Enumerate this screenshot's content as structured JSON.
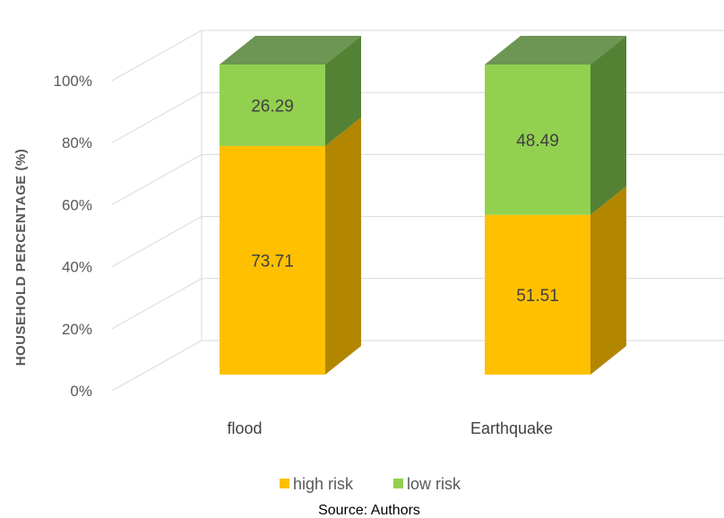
{
  "chart_data": {
    "type": "bar",
    "stacked": true,
    "three_d": true,
    "categories": [
      "flood",
      "Earthquake"
    ],
    "series": [
      {
        "name": "high risk",
        "values": [
          73.71,
          51.51
        ],
        "color": "#FFC000",
        "side_color": "#B38600"
      },
      {
        "name": "low risk",
        "values": [
          26.29,
          48.49
        ],
        "color": "#92D050",
        "side_color": "#548235"
      }
    ],
    "ylabel": "HOUSEHOLD PERCENTAGE (%)",
    "yticks": [
      "0%",
      "20%",
      "40%",
      "60%",
      "80%",
      "100%"
    ],
    "ylim": [
      0,
      100
    ],
    "legend_position": "bottom",
    "grid": true
  },
  "source": "Source: Authors"
}
